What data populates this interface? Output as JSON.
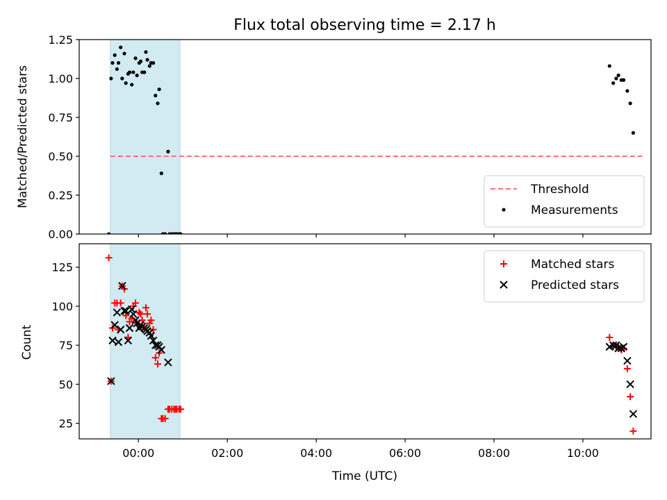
{
  "chart_data": [
    {
      "type": "scatter",
      "title": "Flux total observing time = 2.17 h",
      "xlabel": "",
      "ylabel": "Matched/Predicted stars",
      "xlim": [
        "-01:20",
        "11:32"
      ],
      "ylim": [
        0,
        1.25
      ],
      "yticks": [
        0.0,
        0.25,
        0.5,
        0.75,
        1.0,
        1.25
      ],
      "ytick_labels": [
        "0.00",
        "0.25",
        "0.50",
        "0.75",
        "1.00",
        "1.25"
      ],
      "xticks": [
        "00:00",
        "02:00",
        "04:00",
        "06:00",
        "08:00",
        "10:00"
      ],
      "show_xtick_labels": false,
      "grid": false,
      "legend_position": "lower-right",
      "shaded_interval": {
        "x0": "-00:38",
        "x1": "00:56",
        "color": "#add8e6"
      },
      "threshold": {
        "name": "Threshold",
        "y": 0.5,
        "x0": "-00:38",
        "x1": "11:20",
        "color": "#ff7070"
      },
      "series": [
        {
          "name": "Measurements",
          "marker": "dot",
          "color": "#000000",
          "points": [
            [
              "-00:40",
              0.0
            ],
            [
              "-00:37",
              1.0
            ],
            [
              "-00:35",
              1.1
            ],
            [
              "-00:32",
              1.15
            ],
            [
              "-00:29",
              1.06
            ],
            [
              "-00:27",
              1.1
            ],
            [
              "-00:24",
              1.2
            ],
            [
              "-00:22",
              1.0
            ],
            [
              "-00:19",
              1.16
            ],
            [
              "-00:17",
              0.97
            ],
            [
              "-00:14",
              1.03
            ],
            [
              "-00:12",
              1.04
            ],
            [
              "-00:09",
              0.96
            ],
            [
              "-00:07",
              1.04
            ],
            [
              "-00:04",
              1.13
            ],
            [
              "-00:02",
              1.02
            ],
            [
              "00:01",
              1.1
            ],
            [
              "00:03",
              1.11
            ],
            [
              "00:05",
              1.04
            ],
            [
              "00:08",
              1.04
            ],
            [
              "00:10",
              1.17
            ],
            [
              "00:12",
              1.12
            ],
            [
              "00:15",
              1.08
            ],
            [
              "00:17",
              1.1
            ],
            [
              "00:20",
              1.1
            ],
            [
              "00:23",
              0.89
            ],
            [
              "00:26",
              0.84
            ],
            [
              "00:28",
              0.93
            ],
            [
              "00:31",
              0.39
            ],
            [
              "00:33",
              0.0
            ],
            [
              "00:36",
              0.0
            ],
            [
              "00:40",
              0.53
            ],
            [
              "00:42",
              0.0
            ],
            [
              "00:45",
              0.0
            ],
            [
              "00:48",
              0.0
            ],
            [
              "00:50",
              0.0
            ],
            [
              "00:52",
              0.0
            ],
            [
              "00:55",
              0.0
            ],
            [
              "00:57",
              0.0
            ],
            [
              "10:36",
              1.08
            ],
            [
              "10:41",
              0.97
            ],
            [
              "10:45",
              1.0
            ],
            [
              "10:48",
              1.02
            ],
            [
              "10:52",
              0.99
            ],
            [
              "10:55",
              0.99
            ],
            [
              "11:00",
              0.92
            ],
            [
              "11:04",
              0.84
            ],
            [
              "11:08",
              0.65
            ]
          ]
        }
      ]
    },
    {
      "type": "scatter",
      "title": "",
      "xlabel": "Time (UTC)",
      "ylabel": "Count",
      "xlim": [
        "-01:20",
        "11:32"
      ],
      "ylim": [
        15,
        140
      ],
      "yticks": [
        25,
        50,
        75,
        100,
        125
      ],
      "ytick_labels": [
        "25",
        "50",
        "75",
        "100",
        "125"
      ],
      "xticks": [
        "00:00",
        "02:00",
        "04:00",
        "06:00",
        "08:00",
        "10:00"
      ],
      "show_xtick_labels": true,
      "grid": false,
      "legend_position": "upper-right",
      "shaded_interval": {
        "x0": "-00:38",
        "x1": "00:56",
        "color": "#add8e6"
      },
      "series": [
        {
          "name": "Matched stars",
          "marker": "plus",
          "color": "#ff0000",
          "points": [
            [
              "-00:40",
              131
            ],
            [
              "-00:37",
              52
            ],
            [
              "-00:35",
              86
            ],
            [
              "-00:32",
              102
            ],
            [
              "-00:29",
              102
            ],
            [
              "-00:27",
              85
            ],
            [
              "-00:24",
              102
            ],
            [
              "-00:22",
              113
            ],
            [
              "-00:19",
              111
            ],
            [
              "-00:17",
              94
            ],
            [
              "-00:14",
              80
            ],
            [
              "-00:12",
              90
            ],
            [
              "-00:09",
              92
            ],
            [
              "-00:07",
              100
            ],
            [
              "-00:04",
              102
            ],
            [
              "-00:02",
              89
            ],
            [
              "00:01",
              96
            ],
            [
              "00:03",
              95
            ],
            [
              "00:05",
              91
            ],
            [
              "00:08",
              86
            ],
            [
              "00:10",
              99
            ],
            [
              "00:12",
              95
            ],
            [
              "00:15",
              89
            ],
            [
              "00:17",
              91
            ],
            [
              "00:20",
              85
            ],
            [
              "00:23",
              67
            ],
            [
              "00:26",
              63
            ],
            [
              "00:28",
              70
            ],
            [
              "00:31",
              28
            ],
            [
              "00:33",
              28
            ],
            [
              "00:36",
              28
            ],
            [
              "00:40",
              34
            ],
            [
              "00:42",
              34
            ],
            [
              "00:45",
              34
            ],
            [
              "00:48",
              34
            ],
            [
              "00:50",
              34
            ],
            [
              "00:52",
              34
            ],
            [
              "00:55",
              34
            ],
            [
              "00:57",
              34
            ],
            [
              "10:36",
              80
            ],
            [
              "10:41",
              74
            ],
            [
              "10:45",
              74
            ],
            [
              "10:48",
              74
            ],
            [
              "10:52",
              72
            ],
            [
              "10:55",
              73
            ],
            [
              "11:00",
              60
            ],
            [
              "11:04",
              42
            ],
            [
              "11:08",
              20
            ]
          ]
        },
        {
          "name": "Predicted stars",
          "marker": "x",
          "color": "#000000",
          "points": [
            [
              "-00:37",
              52
            ],
            [
              "-00:35",
              78
            ],
            [
              "-00:32",
              88
            ],
            [
              "-00:29",
              96
            ],
            [
              "-00:27",
              77
            ],
            [
              "-00:24",
              85
            ],
            [
              "-00:22",
              113
            ],
            [
              "-00:19",
              97
            ],
            [
              "-00:17",
              97
            ],
            [
              "-00:14",
              78
            ],
            [
              "-00:12",
              86
            ],
            [
              "-00:09",
              98
            ],
            [
              "-00:07",
              95
            ],
            [
              "-00:04",
              91
            ],
            [
              "-00:02",
              89
            ],
            [
              "00:01",
              86
            ],
            [
              "00:03",
              88
            ],
            [
              "00:05",
              87
            ],
            [
              "00:08",
              86
            ],
            [
              "00:10",
              85
            ],
            [
              "00:12",
              84
            ],
            [
              "00:15",
              83
            ],
            [
              "00:17",
              81
            ],
            [
              "00:20",
              78
            ],
            [
              "00:23",
              75
            ],
            [
              "00:26",
              75
            ],
            [
              "00:28",
              74
            ],
            [
              "00:31",
              72
            ],
            [
              "00:40",
              64
            ],
            [
              "10:36",
              74
            ],
            [
              "10:41",
              75
            ],
            [
              "10:45",
              75
            ],
            [
              "10:48",
              73
            ],
            [
              "10:52",
              73
            ],
            [
              "10:55",
              74
            ],
            [
              "11:00",
              65
            ],
            [
              "11:04",
              50
            ],
            [
              "11:08",
              31
            ]
          ]
        }
      ]
    }
  ]
}
